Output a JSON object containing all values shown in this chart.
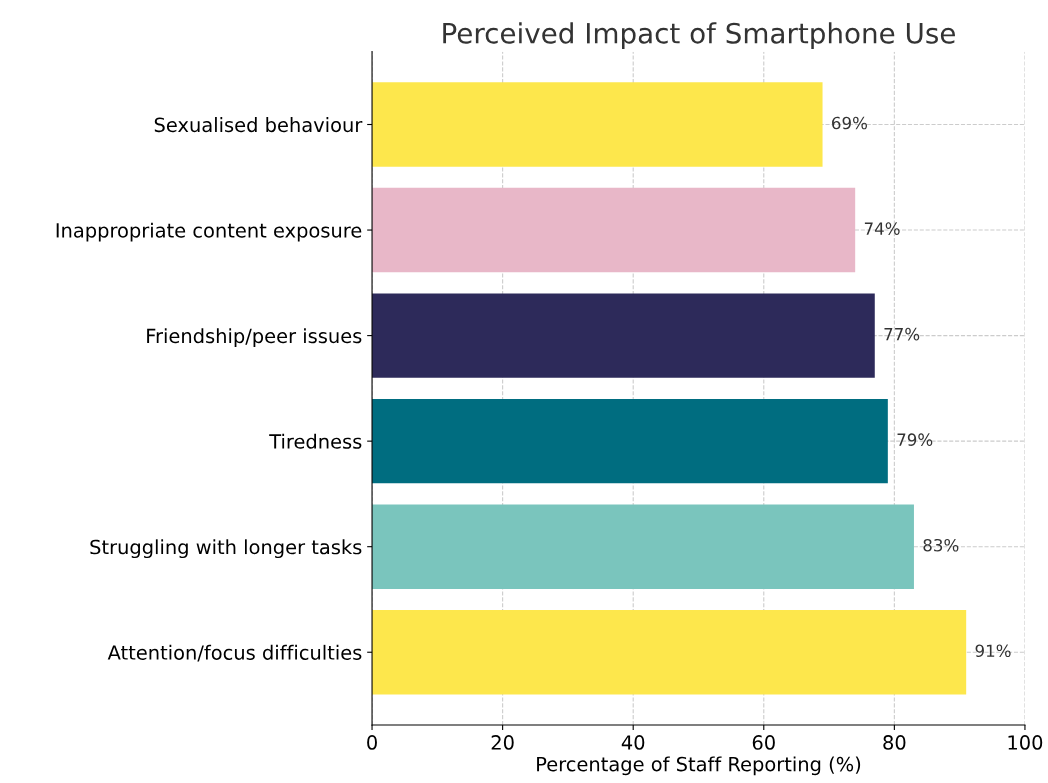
{
  "chart_data": {
    "type": "bar",
    "orientation": "horizontal",
    "title": "Perceived Impact of Smartphone Use",
    "xlabel": "Percentage of Staff Reporting (%)",
    "categories": [
      "Sexualised behaviour",
      "Inappropriate content exposure",
      "Friendship/peer issues",
      "Tiredness",
      "Struggling with longer tasks",
      "Attention/focus difficulties"
    ],
    "values": [
      69,
      74,
      77,
      79,
      83,
      91
    ],
    "colors": [
      "#fde74c",
      "#e8b7c8",
      "#2d2a5a",
      "#006d80",
      "#7ac5bd",
      "#fde74c"
    ],
    "value_labels": [
      "69%",
      "74%",
      "77%",
      "79%",
      "83%",
      "91%"
    ],
    "xlim": [
      0,
      100
    ],
    "xticks": [
      0,
      20,
      40,
      60,
      80,
      100
    ],
    "grid": true
  }
}
